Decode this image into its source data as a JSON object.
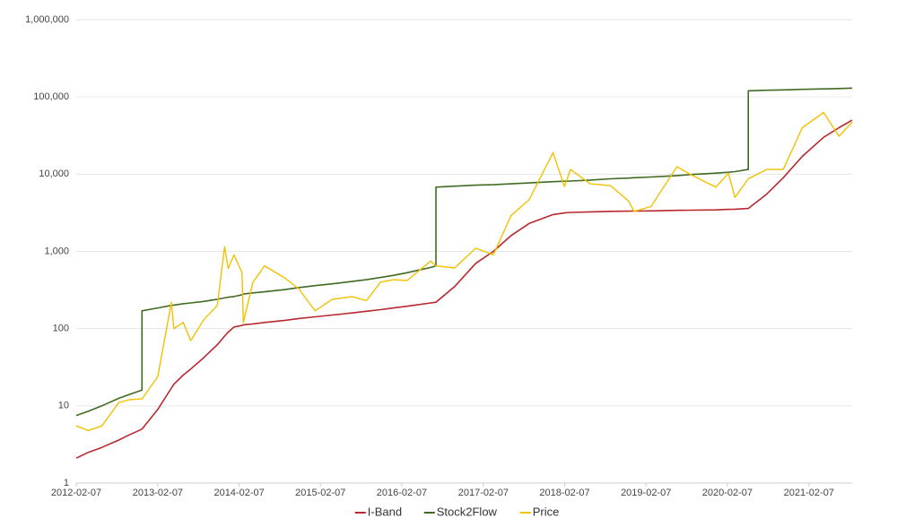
{
  "chart_data": {
    "type": "line",
    "log_scale": "y",
    "grid": true,
    "legend": "bottom",
    "x": [
      "2012-02-07",
      "2012-04-01",
      "2012-06-01",
      "2012-08-15",
      "2012-10-01",
      "2012-11-28",
      "2012-11-28",
      "2013-02-07",
      "2013-04-09",
      "2013-04-20",
      "2013-06-01",
      "2013-07-05",
      "2013-09-01",
      "2013-11-01",
      "2013-12-04",
      "2013-12-20",
      "2014-01-15",
      "2014-02-20",
      "2014-02-26",
      "2014-04-10",
      "2014-06-01",
      "2014-09-01",
      "2014-11-01",
      "2015-01-14",
      "2015-04-01",
      "2015-07-01",
      "2015-09-01",
      "2015-11-04",
      "2016-01-01",
      "2016-03-01",
      "2016-06-16",
      "2016-07-09",
      "2016-07-09",
      "2016-10-01",
      "2017-01-04",
      "2017-03-24",
      "2017-06-11",
      "2017-09-01",
      "2017-12-17",
      "2018-02-06",
      "2018-03-05",
      "2018-06-01",
      "2018-09-01",
      "2018-11-20",
      "2018-12-15",
      "2019-03-01",
      "2019-06-26",
      "2019-09-01",
      "2019-12-17",
      "2020-02-12",
      "2020-03-12",
      "2020-05-11",
      "2020-05-11",
      "2020-08-01",
      "2020-10-15",
      "2021-01-08",
      "2021-04-14",
      "2021-06-22",
      "2021-08-20"
    ],
    "series": [
      {
        "name": "I-Band",
        "color": "#b8282e",
        "values": [
          2.1,
          2.5,
          2.9,
          3.6,
          4.2,
          5,
          5,
          9,
          17,
          19,
          25,
          30,
          42,
          62,
          80,
          90,
          105,
          110,
          112,
          115,
          120,
          128,
          135,
          142,
          150,
          160,
          168,
          176,
          185,
          195,
          215,
          220,
          220,
          350,
          700,
          1000,
          1600,
          2300,
          3000,
          3150,
          3200,
          3250,
          3300,
          3320,
          3330,
          3350,
          3400,
          3420,
          3450,
          3500,
          3520,
          3600,
          3600,
          5500,
          9000,
          17000,
          30000,
          40000,
          50000
        ]
      },
      {
        "name": "Stock2Flow",
        "color": "#3f6b22",
        "values": [
          7.5,
          8.5,
          10,
          12.5,
          14,
          16,
          170,
          185,
          200,
          202,
          210,
          215,
          225,
          240,
          250,
          255,
          260,
          275,
          280,
          290,
          300,
          320,
          340,
          360,
          380,
          410,
          430,
          460,
          490,
          530,
          620,
          650,
          6800,
          7000,
          7200,
          7300,
          7500,
          7700,
          8000,
          8100,
          8150,
          8400,
          8700,
          8900,
          9000,
          9200,
          9600,
          9900,
          10300,
          10600,
          10800,
          11500,
          120000,
          122000,
          123500,
          125500,
          127000,
          128500,
          130000
        ]
      },
      {
        "name": "Price",
        "color": "#f2c100",
        "values": [
          5.5,
          4.8,
          5.5,
          11,
          12,
          12.3,
          12.3,
          24,
          220,
          100,
          120,
          70,
          130,
          200,
          1150,
          600,
          900,
          530,
          120,
          400,
          650,
          450,
          330,
          170,
          240,
          260,
          230,
          400,
          430,
          420,
          750,
          650,
          650,
          610,
          1100,
          900,
          2900,
          4700,
          19000,
          6900,
          11500,
          7500,
          7100,
          4500,
          3300,
          3800,
          12500,
          9700,
          6800,
          10300,
          5000,
          8700,
          8700,
          11500,
          11500,
          40000,
          63000,
          31000,
          47000
        ]
      }
    ],
    "xlim": [
      "2012-02-07",
      "2021-08-20"
    ],
    "xticks": [
      "2012-02-07",
      "2013-02-07",
      "2014-02-07",
      "2015-02-07",
      "2016-02-07",
      "2017-02-07",
      "2018-02-07",
      "2019-02-07",
      "2020-02-07",
      "2021-02-07"
    ],
    "ylim": [
      1,
      1000000
    ],
    "yticks": [
      1,
      10,
      100,
      {
        "value": 1000,
        "label": "1,000"
      },
      {
        "value": 10000,
        "label": "10,000"
      },
      {
        "value": 100000,
        "label": "100,000"
      },
      {
        "value": 1000000,
        "label": "1,000,000"
      }
    ]
  }
}
